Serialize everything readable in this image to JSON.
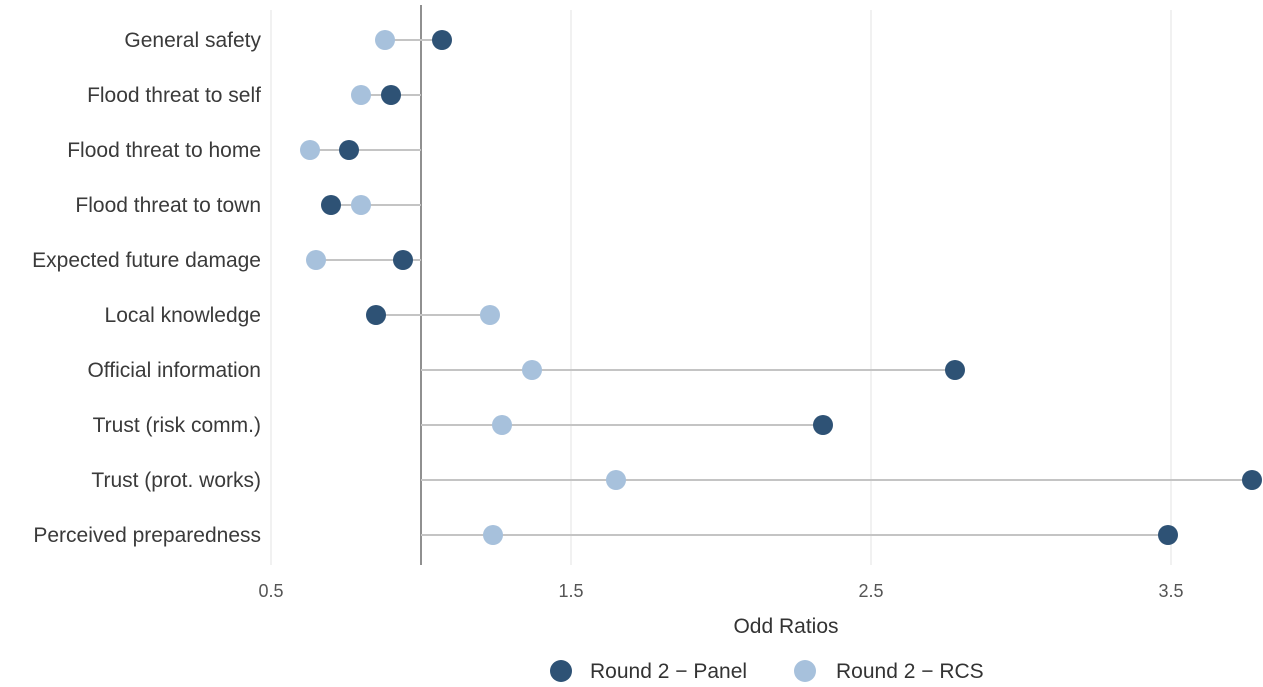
{
  "chart_data": {
    "type": "scatter",
    "style": "dumbbell",
    "xlabel": "Odd Ratios",
    "xlim": [
      0.5,
      3.8
    ],
    "reference_x": 1.0,
    "xticks": [
      "0.5",
      "1.5",
      "2.5",
      "3.5"
    ],
    "xtick_values": [
      0.5,
      1.5,
      2.5,
      3.5
    ],
    "grid": true,
    "legend_position": "bottom",
    "categories": [
      "General safety",
      "Flood threat to self",
      "Flood threat to home",
      "Flood threat to town",
      "Expected future damage",
      "Local knowledge",
      "Official information",
      "Trust (risk comm.)",
      "Trust (prot. works)",
      "Perceived preparedness"
    ],
    "series": [
      {
        "name": "Round 2 − Panel",
        "color": "#2e5275",
        "values": [
          1.07,
          0.9,
          0.76,
          0.7,
          0.94,
          0.85,
          2.78,
          2.34,
          3.77,
          3.49
        ]
      },
      {
        "name": "Round 2 − RCS",
        "color": "#a7c1dc",
        "values": [
          0.88,
          0.8,
          0.63,
          0.8,
          0.65,
          1.23,
          1.37,
          1.27,
          1.65,
          1.24
        ]
      }
    ]
  }
}
